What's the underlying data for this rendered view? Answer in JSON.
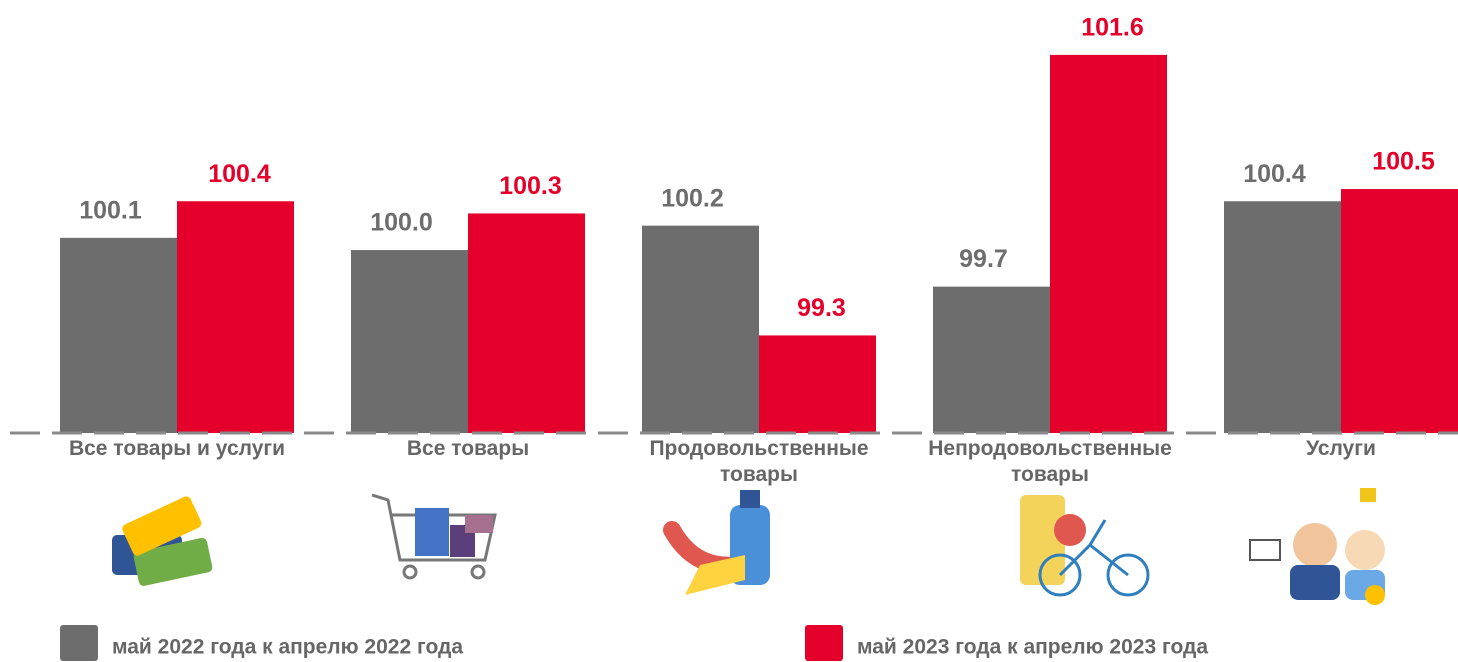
{
  "chart_data": {
    "type": "bar",
    "categories": [
      "Все товары и услуги",
      "Все товары",
      "Продовольственные товары",
      "Непродовольственные товары",
      "Услуги"
    ],
    "series": [
      {
        "name": "май 2022 года к апрелю 2022 года",
        "color": "#6d6d6d",
        "values": [
          100.1,
          100.0,
          100.2,
          99.7,
          100.4
        ],
        "value_labels": [
          "100.1",
          "100.0",
          "100.2",
          "99.7",
          "100.4"
        ]
      },
      {
        "name": "май 2023 года к апрелю 2023 года",
        "color": "#e4002b",
        "values": [
          100.4,
          100.3,
          99.3,
          101.6,
          100.5
        ]
      }
    ],
    "ylim": [
      98.5,
      102.05
    ]
  }
}
